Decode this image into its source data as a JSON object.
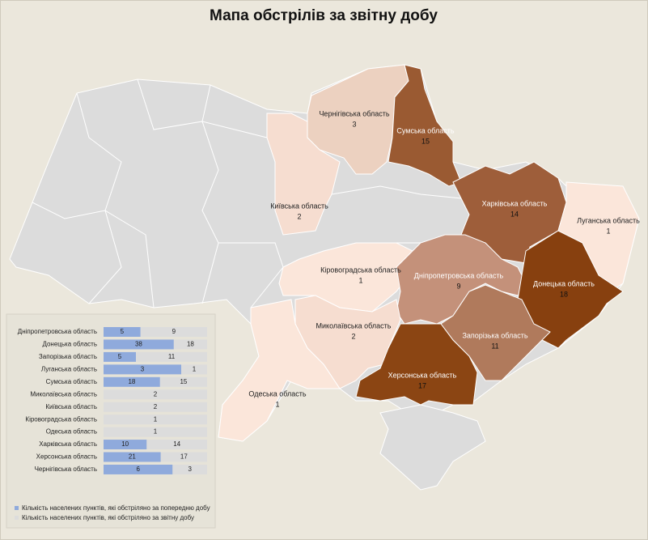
{
  "title": "Мапа обстрілів за звітну добу",
  "map": {
    "type": "choropleth",
    "regions": [
      {
        "name": "Чернігівська область",
        "value": 3,
        "color": "#ecd1c0"
      },
      {
        "name": "Сумська область",
        "value": 15,
        "color": "#9a5a32"
      },
      {
        "name": "Київська область",
        "value": 2,
        "color": "#f6ddd0"
      },
      {
        "name": "Харківська область",
        "value": 14,
        "color": "#9e5e3a"
      },
      {
        "name": "Луганська область",
        "value": 1,
        "color": "#fbe6da"
      },
      {
        "name": "Кіровоградська область",
        "value": 1,
        "color": "#fbe6da"
      },
      {
        "name": "Дніпропетровська область",
        "value": 9,
        "color": "#c4917a"
      },
      {
        "name": "Донецька область",
        "value": 18,
        "color": "#87400f"
      },
      {
        "name": "Миколаївська область",
        "value": 2,
        "color": "#f6ddd0"
      },
      {
        "name": "Запорізька область",
        "value": 11,
        "color": "#b07a5c"
      },
      {
        "name": "Херсонська область",
        "value": 17,
        "color": "#8b4513"
      },
      {
        "name": "Одеська область",
        "value": 1,
        "color": "#fbe6da"
      }
    ]
  },
  "chart_data": {
    "type": "bar",
    "orientation": "horizontal",
    "stacked": "percent",
    "categories": [
      "Дніпропетровська область",
      "Донецька область",
      "Запорізька область",
      "Луганська область",
      "Сумська область",
      "Миколаївська область",
      "Київська область",
      "Кіровоградська область",
      "Одеська область",
      "Харківська область",
      "Херсонська область",
      "Чернігівська область"
    ],
    "series": [
      {
        "name": "Кількість населених пунктів, які обстріляно за попередню добу",
        "color": "#8faadc",
        "values": [
          5,
          38,
          5,
          3,
          18,
          null,
          null,
          null,
          null,
          10,
          21,
          6
        ]
      },
      {
        "name": "Кількість населених пунктів, які обстріляно за звітну добу",
        "color": "#dcdcdc",
        "values": [
          9,
          18,
          11,
          1,
          15,
          2,
          2,
          1,
          1,
          14,
          17,
          3
        ]
      }
    ]
  }
}
